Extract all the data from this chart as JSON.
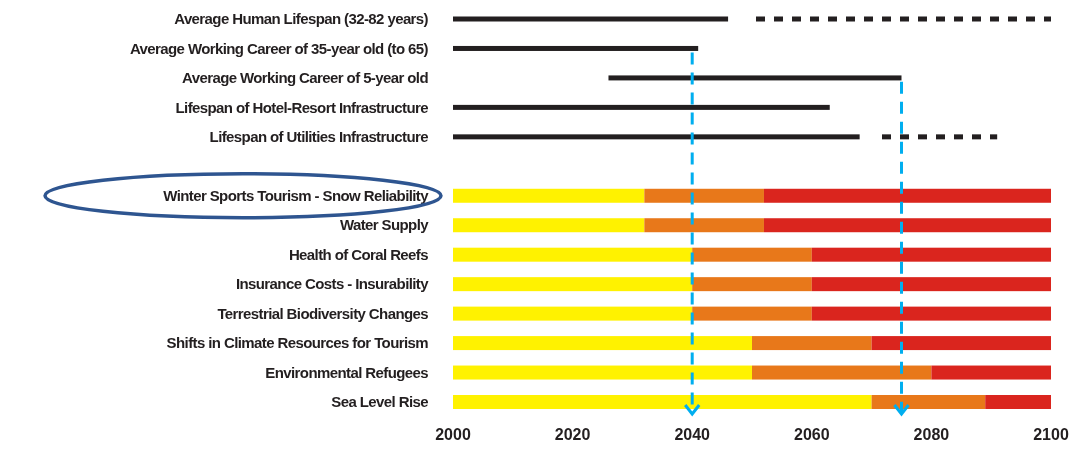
{
  "chart_data": {
    "type": "bar",
    "orientation": "horizontal",
    "categories": [
      "Average Human Lifespan (32-82 years)",
      "Average Working Career of 35-year old (to 65)",
      "Average Working Career of 5-year old",
      "Lifespan of Hotel-Resort Infrastructure",
      "Lifespan of Utilities Infrastructure",
      null,
      "Winter Sports Tourism - Snow Reliability",
      "Water Supply",
      "Health of Coral Reefs",
      "Insurance Costs - Insurability",
      "Terrestrial Biodiversity Changes",
      "Shifts in Climate Resources for Tourism",
      "Environmental Refugees",
      "Sea Level Rise"
    ],
    "series": [
      {
        "color": "#231f20",
        "line_style": "solid",
        "base": [
          2000,
          2000,
          2026,
          2000,
          2000,
          null,
          null,
          null,
          null,
          null,
          null,
          null,
          null,
          null
        ],
        "values": [
          46,
          41,
          49,
          63,
          68,
          null,
          null,
          null,
          null,
          null,
          null,
          null,
          null,
          null
        ]
      },
      {
        "color": "#231f20",
        "line_style": "dashed",
        "base": [
          2050,
          null,
          null,
          null,
          2071,
          null,
          null,
          null,
          null,
          null,
          null,
          null,
          null,
          null
        ],
        "values": [
          50,
          null,
          null,
          null,
          20,
          null,
          null,
          null,
          null,
          null,
          null,
          null,
          null,
          null
        ]
      },
      {
        "color": "#fff200",
        "base": [
          null,
          null,
          null,
          null,
          null,
          null,
          2000,
          2000,
          2000,
          2000,
          2000,
          2000,
          2000,
          2000
        ],
        "values": [
          null,
          null,
          null,
          null,
          null,
          null,
          32,
          32,
          40,
          40,
          40,
          50,
          50,
          70
        ]
      },
      {
        "color": "#e8781a",
        "base": [
          null,
          null,
          null,
          null,
          null,
          null,
          2032,
          2032,
          2040,
          2040,
          2040,
          2050,
          2050,
          2070
        ],
        "values": [
          null,
          null,
          null,
          null,
          null,
          null,
          20,
          20,
          20,
          20,
          20,
          20,
          30,
          19
        ]
      },
      {
        "color": "#da251e",
        "base": [
          null,
          null,
          null,
          null,
          null,
          null,
          2052,
          2052,
          2060,
          2060,
          2060,
          2070,
          2080,
          2089
        ],
        "values": [
          null,
          null,
          null,
          null,
          null,
          null,
          48,
          48,
          40,
          40,
          40,
          30,
          20,
          11
        ]
      }
    ],
    "xlim": [
      2000,
      2100
    ],
    "xticks": [
      2000,
      2020,
      2040,
      2060,
      2080,
      2100
    ],
    "ref_lines": [
      {
        "axis": "x",
        "value": 2040,
        "color": "#00aeef",
        "line_style": "dashed"
      },
      {
        "axis": "x",
        "value": 2075,
        "color": "#00aeef",
        "line_style": "dashed"
      }
    ]
  }
}
